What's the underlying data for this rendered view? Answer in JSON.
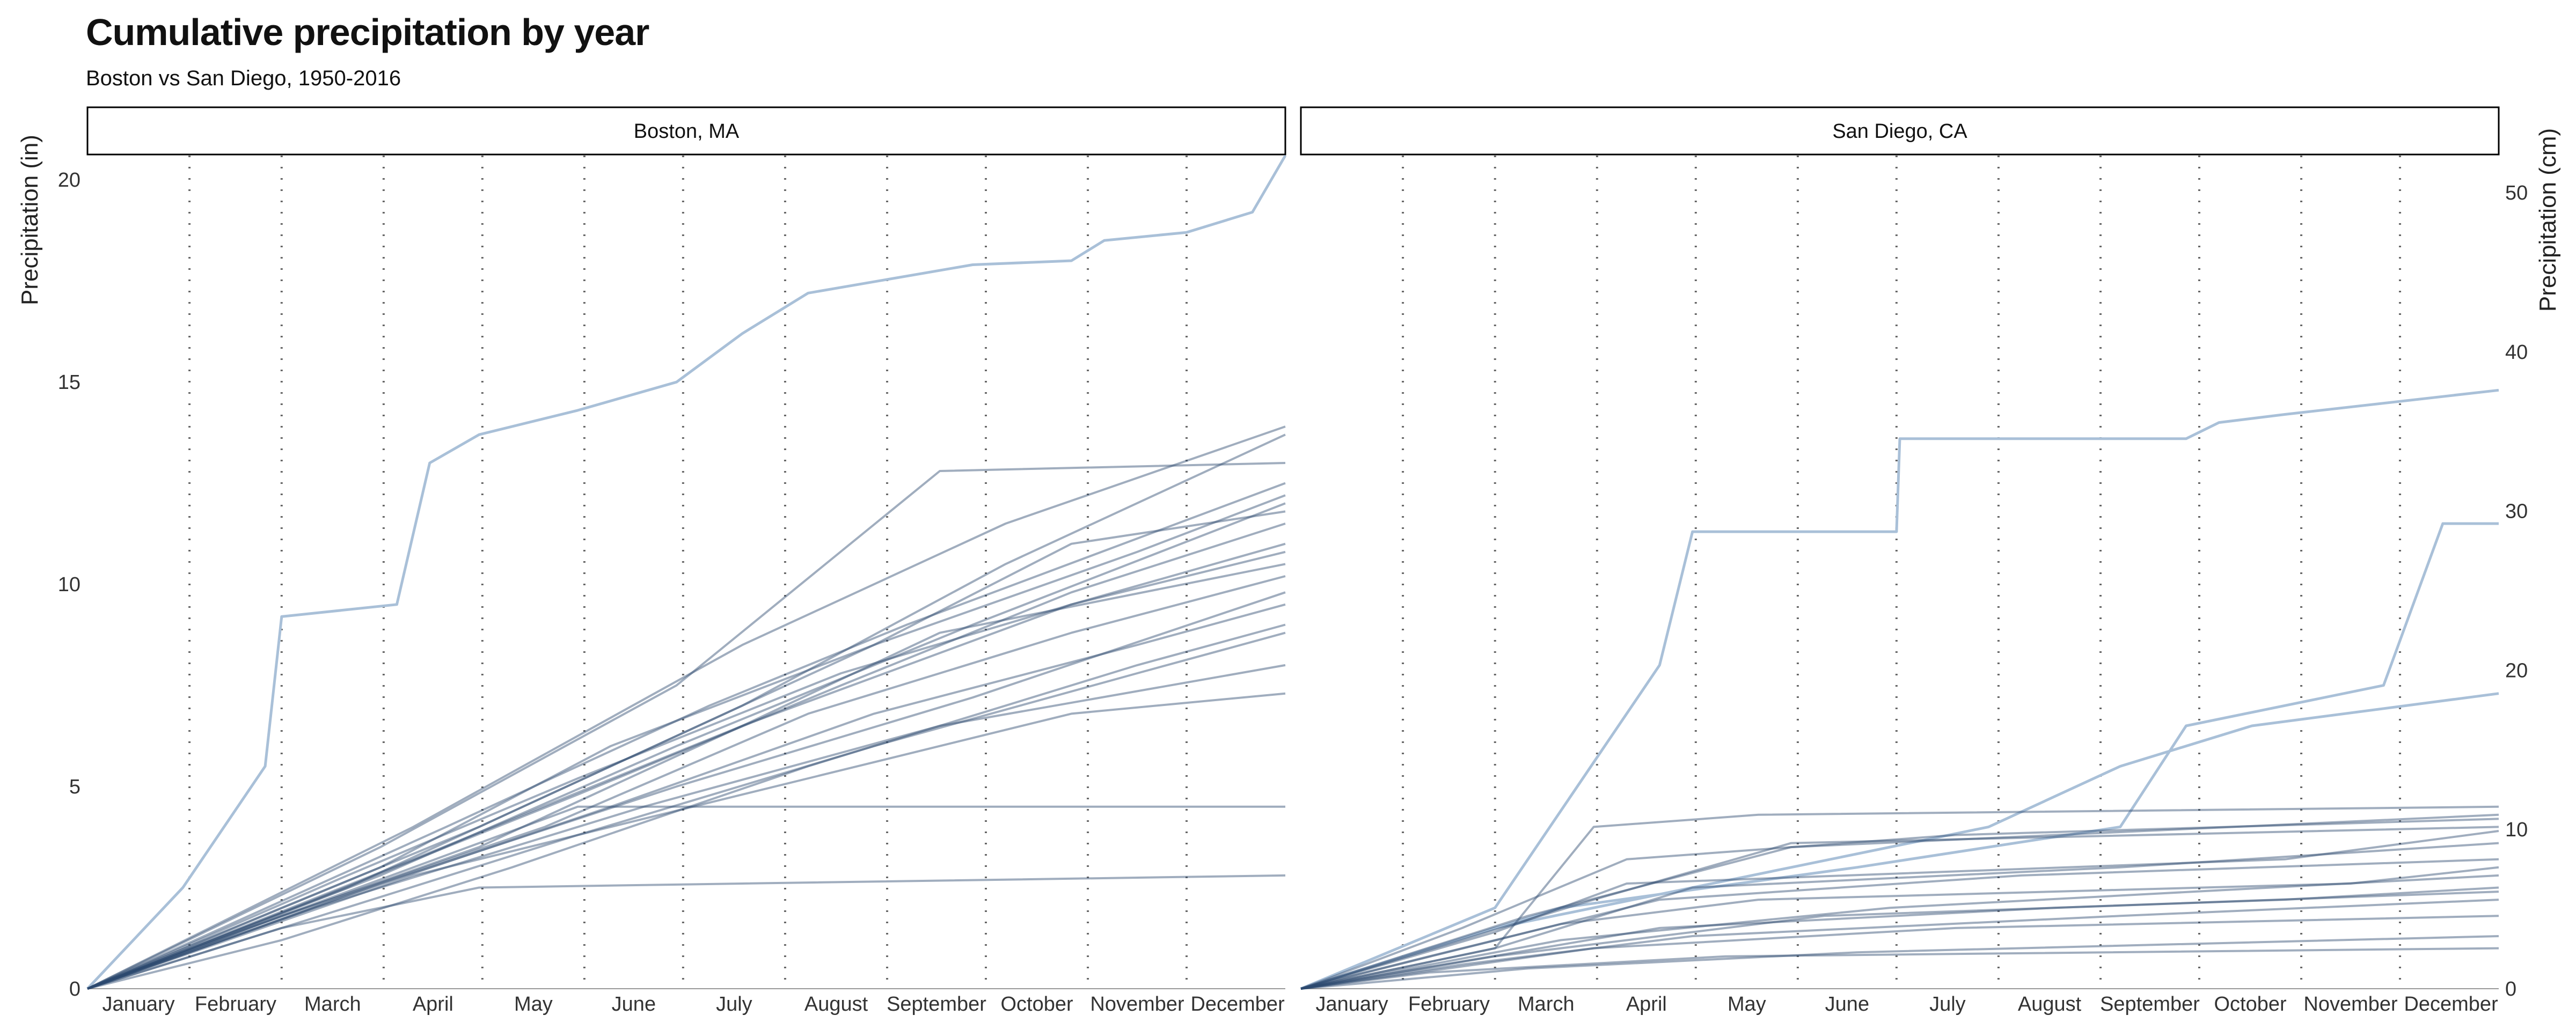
{
  "title": "Cumulative precipitation by year",
  "subtitle": "Boston vs San Diego, 1950-2016",
  "chart_data": {
    "type": "line",
    "ylabel_left": "Precipitation (in)",
    "ylabel_right": "Precipitation (cm)",
    "yticks_left": [
      0,
      5,
      10,
      15,
      20
    ],
    "yticks_right": [
      0,
      10,
      20,
      30,
      40,
      50
    ],
    "ylim": [
      0,
      20.6
    ],
    "xlim": [
      1,
      365
    ],
    "month_labels": [
      "January",
      "February",
      "March",
      "April",
      "May",
      "June",
      "July",
      "August",
      "September",
      "October",
      "November",
      "December"
    ],
    "month_starts": [
      32,
      60,
      91,
      121,
      152,
      182,
      213,
      244,
      274,
      305,
      335
    ],
    "grid_vertical": "dotted at month boundaries",
    "series_color": "#2c4a6e",
    "highlight_color": "#a9c0d8",
    "panels": [
      {
        "name": "Boston, MA",
        "highlight_series": [
          {
            "points": [
              [
                1,
                0
              ],
              [
                30,
                2.5
              ],
              [
                55,
                5.5
              ],
              [
                60,
                9.2
              ],
              [
                95,
                9.5
              ],
              [
                105,
                13.0
              ],
              [
                120,
                13.7
              ],
              [
                150,
                14.3
              ],
              [
                180,
                15.0
              ],
              [
                200,
                16.2
              ],
              [
                220,
                17.2
              ],
              [
                270,
                17.9
              ],
              [
                300,
                18.0
              ],
              [
                310,
                18.5
              ],
              [
                335,
                18.7
              ],
              [
                355,
                19.2
              ],
              [
                365,
                20.6
              ]
            ]
          }
        ],
        "series": [
          {
            "points": [
              [
                1,
                0
              ],
              [
                60,
                1.8
              ],
              [
                150,
                4.5
              ],
              [
                240,
                4.5
              ],
              [
                365,
                4.5
              ]
            ]
          },
          {
            "points": [
              [
                1,
                0
              ],
              [
                60,
                1.5
              ],
              [
                120,
                2.5
              ],
              [
                200,
                2.6
              ],
              [
                365,
                2.8
              ]
            ]
          },
          {
            "points": [
              [
                1,
                0
              ],
              [
                100,
                4.0
              ],
              [
                200,
                8.5
              ],
              [
                280,
                11.5
              ],
              [
                365,
                13.9
              ]
            ]
          },
          {
            "points": [
              [
                1,
                0
              ],
              [
                60,
                2.0
              ],
              [
                120,
                4.0
              ],
              [
                200,
                7.0
              ],
              [
                280,
                10.5
              ],
              [
                365,
                13.7
              ]
            ]
          },
          {
            "points": [
              [
                1,
                0
              ],
              [
                90,
                3.5
              ],
              [
                180,
                7.5
              ],
              [
                260,
                12.8
              ],
              [
                365,
                13.0
              ]
            ]
          },
          {
            "points": [
              [
                1,
                0
              ],
              [
                80,
                2.5
              ],
              [
                160,
                5.5
              ],
              [
                240,
                8.5
              ],
              [
                320,
                10.8
              ],
              [
                365,
                12.2
              ]
            ]
          },
          {
            "points": [
              [
                1,
                0
              ],
              [
                90,
                2.8
              ],
              [
                180,
                6.0
              ],
              [
                270,
                9.0
              ],
              [
                365,
                12.0
              ]
            ]
          },
          {
            "points": [
              [
                1,
                0
              ],
              [
                70,
                2.2
              ],
              [
                150,
                4.8
              ],
              [
                230,
                7.5
              ],
              [
                300,
                9.8
              ],
              [
                365,
                11.5
              ]
            ]
          },
          {
            "points": [
              [
                1,
                0
              ],
              [
                100,
                3.2
              ],
              [
                200,
                6.5
              ],
              [
                300,
                9.5
              ],
              [
                365,
                11.0
              ]
            ]
          },
          {
            "points": [
              [
                1,
                0
              ],
              [
                60,
                1.8
              ],
              [
                140,
                4.0
              ],
              [
                220,
                6.8
              ],
              [
                300,
                8.8
              ],
              [
                365,
                10.2
              ]
            ]
          },
          {
            "points": [
              [
                1,
                0
              ],
              [
                80,
                2.3
              ],
              [
                160,
                4.5
              ],
              [
                240,
                6.8
              ],
              [
                320,
                8.5
              ],
              [
                365,
                9.5
              ]
            ]
          },
          {
            "points": [
              [
                1,
                0
              ],
              [
                90,
                2.6
              ],
              [
                180,
                5.0
              ],
              [
                270,
                7.2
              ],
              [
                365,
                9.8
              ]
            ]
          },
          {
            "points": [
              [
                1,
                0
              ],
              [
                60,
                1.5
              ],
              [
                150,
                3.8
              ],
              [
                240,
                6.0
              ],
              [
                320,
                7.8
              ],
              [
                365,
                8.8
              ]
            ]
          },
          {
            "points": [
              [
                1,
                0
              ],
              [
                100,
                2.8
              ],
              [
                200,
                4.8
              ],
              [
                300,
                6.8
              ],
              [
                365,
                7.3
              ]
            ]
          },
          {
            "points": [
              [
                1,
                0
              ],
              [
                70,
                2.0
              ],
              [
                170,
                4.5
              ],
              [
                260,
                6.5
              ],
              [
                365,
                8.0
              ]
            ]
          },
          {
            "points": [
              [
                1,
                0
              ],
              [
                50,
                1.5
              ],
              [
                120,
                3.5
              ],
              [
                200,
                6.5
              ],
              [
                260,
                8.8
              ],
              [
                365,
                10.5
              ]
            ]
          },
          {
            "points": [
              [
                1,
                0
              ],
              [
                90,
                3.0
              ],
              [
                160,
                6.0
              ],
              [
                240,
                8.5
              ],
              [
                300,
                11.0
              ],
              [
                365,
                11.8
              ]
            ]
          },
          {
            "points": [
              [
                1,
                0
              ],
              [
                110,
                4.0
              ],
              [
                190,
                7.0
              ],
              [
                250,
                9.0
              ],
              [
                365,
                12.5
              ]
            ]
          },
          {
            "points": [
              [
                1,
                0
              ],
              [
                60,
                1.2
              ],
              [
                130,
                3.0
              ],
              [
                220,
                5.5
              ],
              [
                320,
                8.0
              ],
              [
                365,
                9.0
              ]
            ]
          },
          {
            "points": [
              [
                1,
                0
              ],
              [
                80,
                2.8
              ],
              [
                150,
                5.2
              ],
              [
                230,
                7.8
              ],
              [
                300,
                9.5
              ],
              [
                365,
                10.8
              ]
            ]
          }
        ]
      },
      {
        "name": "San Diego, CA",
        "highlight_series": [
          {
            "points": [
              [
                1,
                0
              ],
              [
                60,
                2.0
              ],
              [
                110,
                8.0
              ],
              [
                120,
                11.3
              ],
              [
                182,
                11.3
              ],
              [
                183,
                13.6
              ],
              [
                270,
                13.6
              ],
              [
                280,
                14.0
              ],
              [
                300,
                14.2
              ],
              [
                365,
                14.8
              ]
            ]
          },
          {
            "points": [
              [
                1,
                0
              ],
              [
                80,
                2.0
              ],
              [
                170,
                3.0
              ],
              [
                250,
                4.0
              ],
              [
                270,
                6.5
              ],
              [
                300,
                7.0
              ],
              [
                330,
                7.5
              ],
              [
                348,
                11.5
              ],
              [
                365,
                11.5
              ]
            ]
          },
          {
            "points": [
              [
                1,
                0
              ],
              [
                60,
                1.5
              ],
              [
                150,
                3.0
              ],
              [
                210,
                4.0
              ],
              [
                250,
                5.5
              ],
              [
                290,
                6.5
              ],
              [
                365,
                7.3
              ]
            ]
          }
        ],
        "series": [
          {
            "points": [
              [
                1,
                0
              ],
              [
                60,
                1.0
              ],
              [
                90,
                4.0
              ],
              [
                140,
                4.3
              ],
              [
                365,
                4.5
              ]
            ]
          },
          {
            "points": [
              [
                1,
                0
              ],
              [
                50,
                1.5
              ],
              [
                100,
                3.2
              ],
              [
                200,
                3.8
              ],
              [
                365,
                4.2
              ]
            ]
          },
          {
            "points": [
              [
                1,
                0
              ],
              [
                70,
                1.8
              ],
              [
                150,
                3.5
              ],
              [
                365,
                4.3
              ]
            ]
          },
          {
            "points": [
              [
                1,
                0
              ],
              [
                60,
                1.0
              ],
              [
                120,
                2.5
              ],
              [
                250,
                3.0
              ],
              [
                365,
                3.6
              ]
            ]
          },
          {
            "points": [
              [
                1,
                0
              ],
              [
                40,
                0.8
              ],
              [
                110,
                2.2
              ],
              [
                220,
                2.8
              ],
              [
                365,
                3.2
              ]
            ]
          },
          {
            "points": [
              [
                1,
                0
              ],
              [
                80,
                1.2
              ],
              [
                180,
                2.0
              ],
              [
                365,
                2.8
              ]
            ]
          },
          {
            "points": [
              [
                1,
                0
              ],
              [
                60,
                0.8
              ],
              [
                160,
                1.8
              ],
              [
                300,
                2.2
              ],
              [
                365,
                2.5
              ]
            ]
          },
          {
            "points": [
              [
                1,
                0
              ],
              [
                50,
                0.6
              ],
              [
                120,
                1.3
              ],
              [
                250,
                1.8
              ],
              [
                365,
                2.2
              ]
            ]
          },
          {
            "points": [
              [
                1,
                0
              ],
              [
                90,
                1.0
              ],
              [
                200,
                1.5
              ],
              [
                365,
                1.8
              ]
            ]
          },
          {
            "points": [
              [
                1,
                0
              ],
              [
                70,
                0.5
              ],
              [
                170,
                0.9
              ],
              [
                365,
                1.3
              ]
            ]
          },
          {
            "points": [
              [
                1,
                0
              ],
              [
                40,
                0.4
              ],
              [
                130,
                0.8
              ],
              [
                365,
                1.0
              ]
            ]
          },
          {
            "points": [
              [
                1,
                0
              ],
              [
                80,
                1.6
              ],
              [
                140,
                2.2
              ],
              [
                320,
                2.6
              ],
              [
                365,
                3.0
              ]
            ]
          },
          {
            "points": [
              [
                1,
                0
              ],
              [
                60,
                1.4
              ],
              [
                100,
                2.6
              ],
              [
                300,
                3.2
              ],
              [
                365,
                3.9
              ]
            ]
          },
          {
            "points": [
              [
                1,
                0
              ],
              [
                90,
                2.2
              ],
              [
                150,
                3.6
              ],
              [
                365,
                4.0
              ]
            ]
          },
          {
            "points": [
              [
                1,
                0
              ],
              [
                110,
                1.5
              ],
              [
                230,
                2.0
              ],
              [
                365,
                2.4
              ]
            ]
          }
        ]
      }
    ]
  }
}
